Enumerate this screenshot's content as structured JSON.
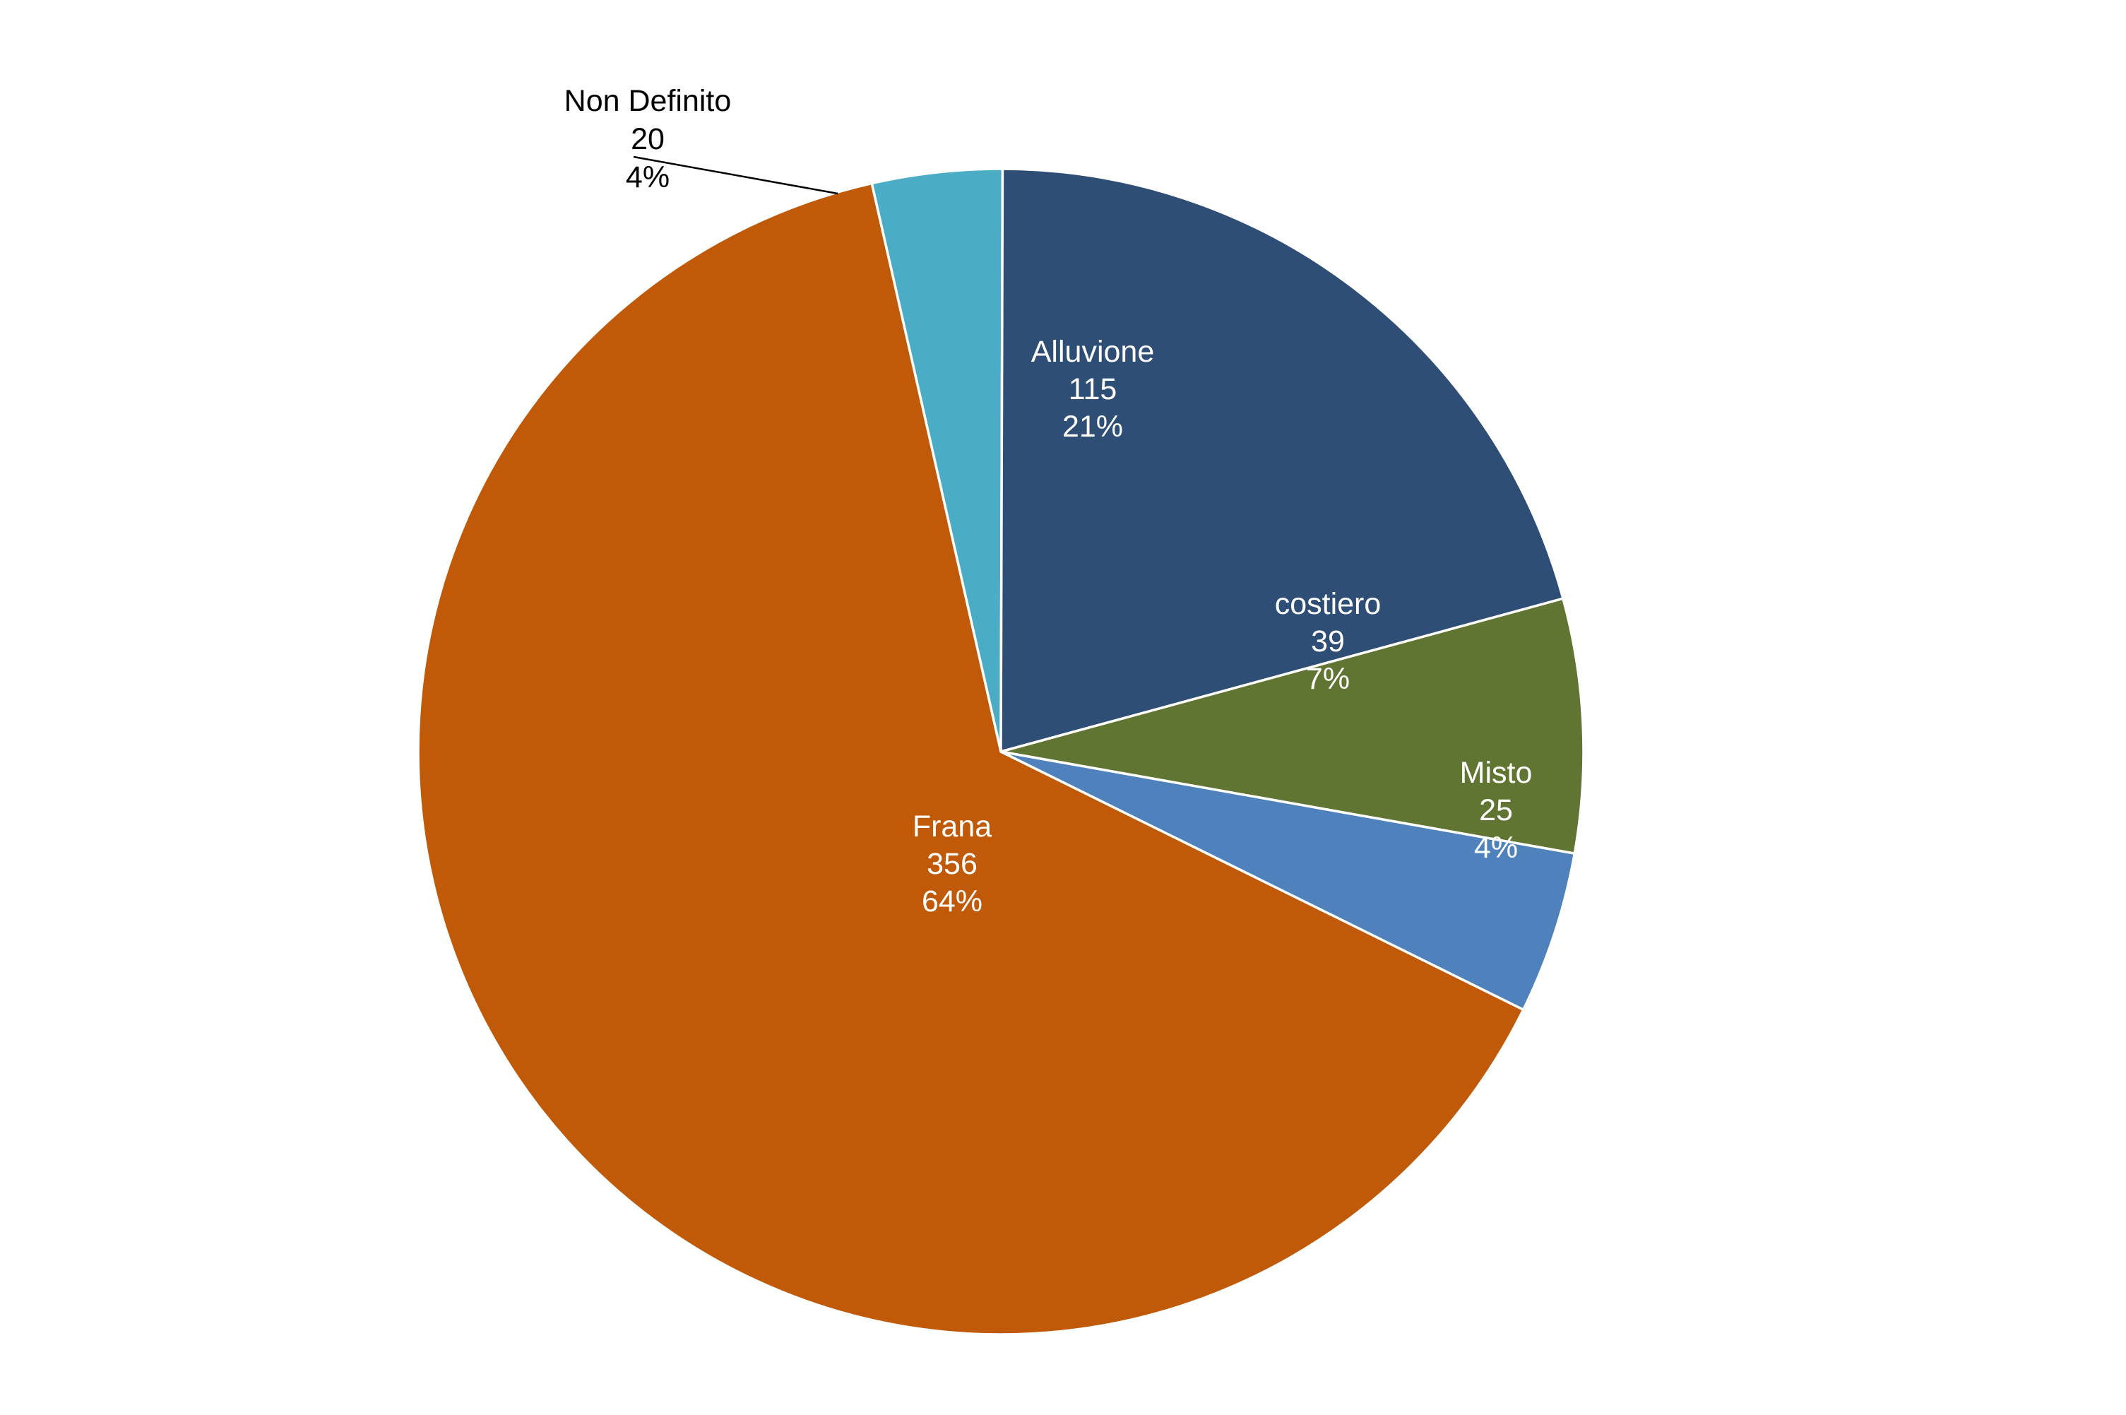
{
  "chart_data": {
    "type": "pie",
    "title": "",
    "slices": [
      {
        "name": "Non Definito",
        "value": 20,
        "percent_label": "4%",
        "color": "#4bacc6",
        "label_position": "outside"
      },
      {
        "name": "Alluvione",
        "value": 115,
        "percent_label": "21%",
        "color": "#2e4e76",
        "label_position": "inside"
      },
      {
        "name": "costiero",
        "value": 39,
        "percent_label": "7%",
        "color": "#617532",
        "label_position": "inside"
      },
      {
        "name": "Misto",
        "value": 25,
        "percent_label": "4%",
        "color": "#4f81bd",
        "label_position": "inside"
      },
      {
        "name": "Frana",
        "value": 356,
        "percent_label": "64%",
        "color": "#c05a08",
        "label_position": "inside"
      }
    ],
    "legend": "none"
  }
}
